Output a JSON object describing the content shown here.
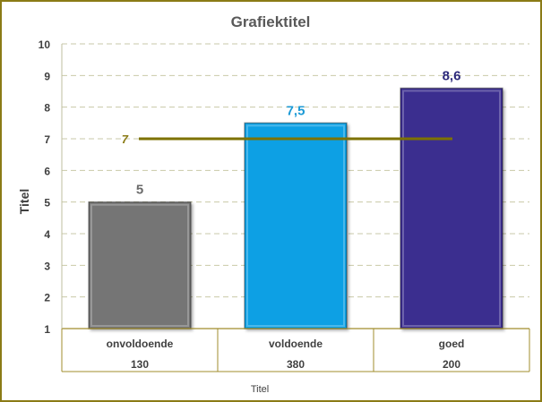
{
  "chart_data": {
    "type": "bar",
    "title": "Grafiektitel",
    "ylabel": "Titel",
    "xlabel": "Titel",
    "categories": [
      "onvoldoende",
      "voldoende",
      "goed"
    ],
    "category_counts": [
      "130",
      "380",
      "200"
    ],
    "values": [
      5,
      7.5,
      8.6
    ],
    "value_labels": [
      "5",
      "7,5",
      "8,6"
    ],
    "bar_colors": [
      "#747474",
      "#0aa0e4",
      "#3b2f8f"
    ],
    "value_label_colors": [
      "#6b6b6b",
      "#1b9ad6",
      "#2d2a7a"
    ],
    "yticks": [
      "1",
      "2",
      "3",
      "4",
      "5",
      "6",
      "7",
      "8",
      "9",
      "10"
    ],
    "ylim": [
      1,
      10
    ],
    "reference_line": {
      "value": 7,
      "label": "7",
      "color": "#7d7200"
    },
    "grid": true,
    "border_color": "#8b7b16",
    "axis_color": "#a08c2c"
  }
}
